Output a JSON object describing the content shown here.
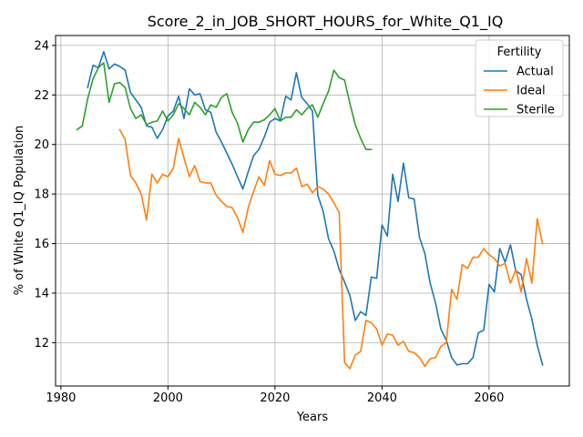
{
  "chart_data": {
    "type": "line",
    "title": "Score_2_in_JOB_SHORT_HOURS_for_White_Q1_IQ",
    "xlabel": "Years",
    "ylabel": "% of White Q1_IQ Population",
    "xlim": [
      1979,
      2075
    ],
    "ylim": [
      10.25,
      24.4
    ],
    "xticks": [
      1980,
      2000,
      2020,
      2040,
      2060
    ],
    "yticks": [
      12,
      14,
      16,
      18,
      20,
      22,
      24
    ],
    "grid": true,
    "legend": {
      "title": "Fertility",
      "position": "top-right"
    },
    "series": [
      {
        "name": "Actual",
        "color": "#1f77b4",
        "x": [
          1985,
          1986,
          1987,
          1988,
          1989,
          1990,
          1991,
          1992,
          1993,
          1994,
          1995,
          1996,
          1997,
          1998,
          1999,
          2000,
          2001,
          2002,
          2003,
          2004,
          2005,
          2006,
          2007,
          2008,
          2009,
          2010,
          2011,
          2012,
          2013,
          2014,
          2015,
          2016,
          2017,
          2018,
          2019,
          2020,
          2021,
          2022,
          2023,
          2024,
          2025,
          2026,
          2027,
          2028,
          2029,
          2030,
          2031,
          2032,
          2033,
          2034,
          2035,
          2036,
          2037,
          2038,
          2039,
          2040,
          2041,
          2042,
          2043,
          2044,
          2045,
          2046,
          2047,
          2048,
          2049,
          2050,
          2051,
          2052,
          2053,
          2054,
          2055,
          2056,
          2057,
          2058,
          2059,
          2060,
          2061,
          2062,
          2063,
          2064,
          2065,
          2066,
          2067,
          2068,
          2069,
          2070
        ],
        "y": [
          22.3,
          23.2,
          23.1,
          23.75,
          23.05,
          23.25,
          23.15,
          23.0,
          22.1,
          21.8,
          21.5,
          20.75,
          20.7,
          20.25,
          20.6,
          21.15,
          21.35,
          21.95,
          21.05,
          22.25,
          22.0,
          22.05,
          21.4,
          21.3,
          20.5,
          20.1,
          19.65,
          19.2,
          18.7,
          18.2,
          18.9,
          19.55,
          19.8,
          20.3,
          20.9,
          21.05,
          20.95,
          21.95,
          21.8,
          22.9,
          21.9,
          21.65,
          21.35,
          17.95,
          17.3,
          16.2,
          15.7,
          14.95,
          14.45,
          13.9,
          12.9,
          13.25,
          13.1,
          14.65,
          14.6,
          16.75,
          16.3,
          18.8,
          17.7,
          19.25,
          17.85,
          17.8,
          16.25,
          15.6,
          14.4,
          13.6,
          12.55,
          12.1,
          11.4,
          11.1,
          11.15,
          11.15,
          11.4,
          12.4,
          12.5,
          14.35,
          14.05,
          15.8,
          15.25,
          15.95,
          14.9,
          14.75,
          13.75,
          12.95,
          11.9,
          11.1
        ]
      },
      {
        "name": "Ideal",
        "color": "#ff7f0e",
        "x": [
          1991,
          1992,
          1993,
          1994,
          1995,
          1996,
          1997,
          1998,
          1999,
          2000,
          2001,
          2002,
          2003,
          2004,
          2005,
          2006,
          2007,
          2008,
          2009,
          2010,
          2011,
          2012,
          2013,
          2014,
          2015,
          2016,
          2017,
          2018,
          2019,
          2020,
          2021,
          2022,
          2023,
          2024,
          2025,
          2026,
          2027,
          2028,
          2029,
          2030,
          2031,
          2032,
          2033,
          2034,
          2035,
          2036,
          2037,
          2038,
          2039,
          2040,
          2041,
          2042,
          2043,
          2044,
          2045,
          2046,
          2047,
          2048,
          2049,
          2050,
          2051,
          2052,
          2053,
          2054,
          2055,
          2056,
          2057,
          2058,
          2059,
          2060,
          2061,
          2062,
          2063,
          2064,
          2065,
          2066,
          2067,
          2068,
          2069,
          2070
        ],
        "y": [
          20.6,
          20.2,
          18.75,
          18.45,
          18.0,
          16.95,
          18.8,
          18.45,
          18.8,
          18.7,
          19.05,
          20.25,
          19.45,
          18.7,
          19.15,
          18.5,
          18.45,
          18.45,
          17.95,
          17.7,
          17.5,
          17.45,
          17.05,
          16.45,
          17.45,
          18.1,
          18.7,
          18.35,
          19.35,
          18.8,
          18.75,
          18.85,
          18.85,
          19.05,
          18.3,
          18.4,
          18.05,
          18.3,
          18.2,
          18.0,
          17.65,
          17.25,
          11.2,
          10.95,
          11.5,
          11.65,
          12.9,
          12.8,
          12.55,
          11.9,
          12.35,
          12.3,
          11.9,
          12.05,
          11.65,
          11.6,
          11.4,
          11.05,
          11.35,
          11.4,
          11.85,
          12.0,
          14.15,
          13.75,
          15.15,
          15.0,
          15.45,
          15.45,
          15.8,
          15.55,
          15.4,
          15.1,
          15.2,
          14.4,
          14.95,
          14.05,
          15.4,
          14.4,
          17.0,
          16.0
        ]
      },
      {
        "name": "Sterile",
        "color": "#2ca02c",
        "x": [
          1983,
          1984,
          1985,
          1986,
          1987,
          1988,
          1989,
          1990,
          1991,
          1992,
          1993,
          1994,
          1995,
          1996,
          1997,
          1998,
          1999,
          2000,
          2001,
          2002,
          2003,
          2004,
          2005,
          2006,
          2007,
          2008,
          2009,
          2010,
          2011,
          2012,
          2013,
          2014,
          2015,
          2016,
          2017,
          2018,
          2019,
          2020,
          2021,
          2022,
          2023,
          2024,
          2025,
          2026,
          2027,
          2028,
          2029,
          2030,
          2031,
          2032,
          2033,
          2034,
          2035,
          2036,
          2037,
          2038
        ],
        "y": [
          20.6,
          20.75,
          21.85,
          22.65,
          23.1,
          23.3,
          21.7,
          22.45,
          22.5,
          22.3,
          21.45,
          21.05,
          21.2,
          20.8,
          20.9,
          20.95,
          21.35,
          20.95,
          21.2,
          21.65,
          21.45,
          21.2,
          21.7,
          21.5,
          21.2,
          21.6,
          21.5,
          21.9,
          22.05,
          21.3,
          20.85,
          20.1,
          20.6,
          20.9,
          20.9,
          21.0,
          21.2,
          21.45,
          20.95,
          21.1,
          21.1,
          21.4,
          21.2,
          21.45,
          21.6,
          21.1,
          21.65,
          22.15,
          23.0,
          22.7,
          22.6,
          21.65,
          20.8,
          20.25,
          19.8,
          19.8
        ]
      }
    ]
  }
}
